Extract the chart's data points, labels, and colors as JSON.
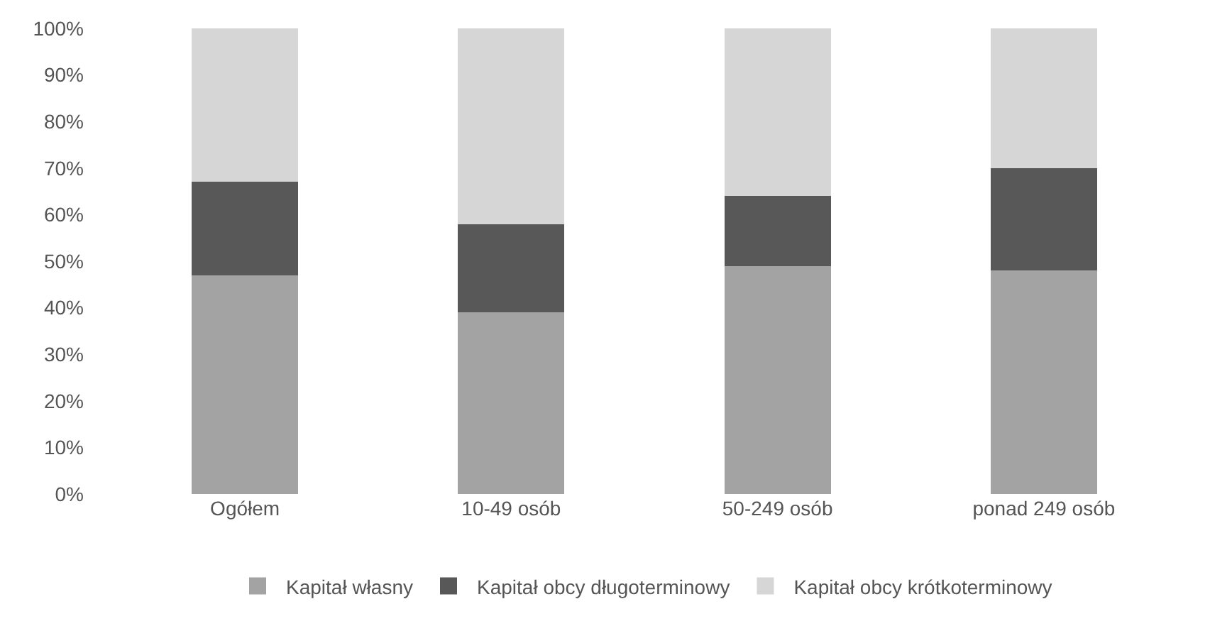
{
  "chart_data": {
    "type": "bar",
    "stacked": true,
    "categories": [
      "Ogółem",
      "10-49 osób",
      "50-249 osób",
      "ponad 249 osób"
    ],
    "series": [
      {
        "name": "Kapitał własny",
        "color": "#a3a3a3",
        "values": [
          47,
          39,
          49,
          48
        ]
      },
      {
        "name": "Kapitał obcy długoterminowy",
        "color": "#585858",
        "values": [
          20,
          19,
          15,
          22
        ]
      },
      {
        "name": "Kapitał obcy krótkoterminowy",
        "color": "#d6d6d6",
        "values": [
          33,
          42,
          36,
          30
        ]
      }
    ],
    "ylim": [
      0,
      100
    ],
    "yticks": [
      {
        "value": 0,
        "label": "0%"
      },
      {
        "value": 10,
        "label": "10%"
      },
      {
        "value": 20,
        "label": "20%"
      },
      {
        "value": 30,
        "label": "30%"
      },
      {
        "value": 40,
        "label": "40%"
      },
      {
        "value": 50,
        "label": "50%"
      },
      {
        "value": 60,
        "label": "60%"
      },
      {
        "value": 70,
        "label": "70%"
      },
      {
        "value": 80,
        "label": "80%"
      },
      {
        "value": 90,
        "label": "90%"
      },
      {
        "value": 100,
        "label": "100%"
      }
    ],
    "legend": "bottom"
  }
}
